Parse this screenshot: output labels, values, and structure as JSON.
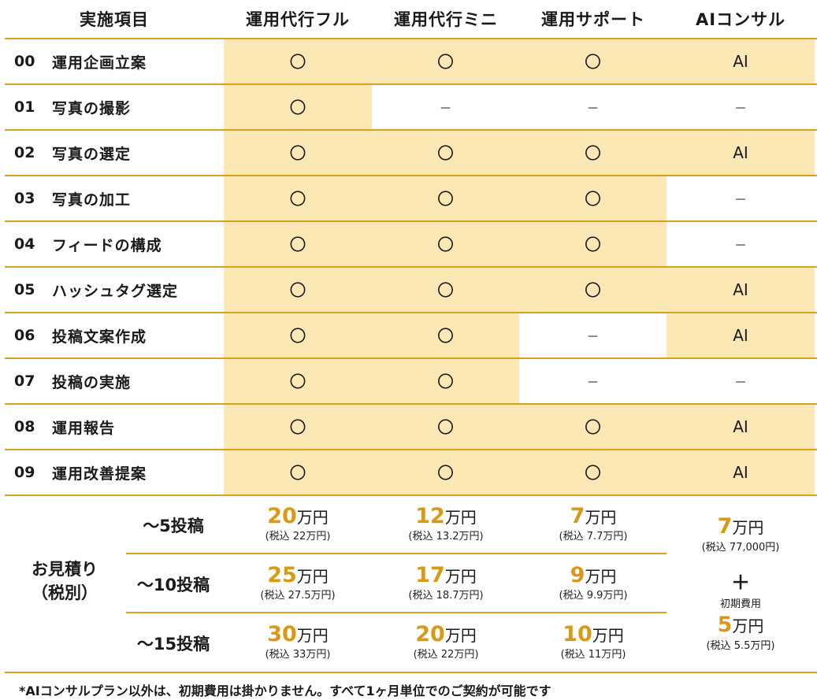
{
  "header": {
    "item_col": "実施項目",
    "plans": [
      "運用代行フル",
      "運用代行ミニ",
      "運用サポート",
      "AIコンサル"
    ]
  },
  "rows": [
    {
      "num": "00",
      "label": "運用企画立案",
      "marks": [
        "〇",
        "〇",
        "〇",
        "AI"
      ]
    },
    {
      "num": "01",
      "label": "写真の撮影",
      "marks": [
        "〇",
        "－",
        "－",
        "－"
      ]
    },
    {
      "num": "02",
      "label": "写真の選定",
      "marks": [
        "〇",
        "〇",
        "〇",
        "AI"
      ]
    },
    {
      "num": "03",
      "label": "写真の加工",
      "marks": [
        "〇",
        "〇",
        "〇",
        "－"
      ]
    },
    {
      "num": "04",
      "label": "フィードの構成",
      "marks": [
        "〇",
        "〇",
        "〇",
        "－"
      ]
    },
    {
      "num": "05",
      "label": "ハッシュタグ選定",
      "marks": [
        "〇",
        "〇",
        "〇",
        "AI"
      ]
    },
    {
      "num": "06",
      "label": "投稿文案作成",
      "marks": [
        "〇",
        "〇",
        "－",
        "AI"
      ]
    },
    {
      "num": "07",
      "label": "投稿の実施",
      "marks": [
        "〇",
        "〇",
        "－",
        "－"
      ]
    },
    {
      "num": "08",
      "label": "運用報告",
      "marks": [
        "〇",
        "〇",
        "〇",
        "AI"
      ]
    },
    {
      "num": "09",
      "label": "運用改善提案",
      "marks": [
        "〇",
        "〇",
        "〇",
        "AI"
      ]
    }
  ],
  "estimate": {
    "label_line1": "お見積り",
    "label_line2": "（税別）",
    "tiers": [
      {
        "label": "～5投稿",
        "prices": [
          {
            "amount": "20",
            "unit": "万円",
            "tax": "(税込 22万円)"
          },
          {
            "amount": "12",
            "unit": "万円",
            "tax": "(税込 13.2万円)"
          },
          {
            "amount": "7",
            "unit": "万円",
            "tax": "(税込 7.7万円)"
          }
        ]
      },
      {
        "label": "～10投稿",
        "prices": [
          {
            "amount": "25",
            "unit": "万円",
            "tax": "(税込 27.5万円)"
          },
          {
            "amount": "17",
            "unit": "万円",
            "tax": "(税込 18.7万円)"
          },
          {
            "amount": "9",
            "unit": "万円",
            "tax": "(税込 9.9万円)"
          }
        ]
      },
      {
        "label": "～15投稿",
        "prices": [
          {
            "amount": "30",
            "unit": "万円",
            "tax": "(税込 33万円)"
          },
          {
            "amount": "20",
            "unit": "万円",
            "tax": "(税込 22万円)"
          },
          {
            "amount": "10",
            "unit": "万円",
            "tax": "(税込 11万円)"
          }
        ]
      }
    ],
    "ai": {
      "monthly_amount": "7",
      "monthly_unit": "万円",
      "monthly_tax": "(税込 77,000円)",
      "plus": "＋",
      "initial_label": "初期費用",
      "initial_amount": "5",
      "initial_unit": "万円",
      "initial_tax": "(税込 5.5万円)"
    }
  },
  "footnote": "*AIコンサルプラン以外は、初期費用は掛かりません。すべて1ヶ月単位でのご契約が可能です",
  "colors": {
    "accent": "#d89a14",
    "fill": "#fce8b5",
    "rule": "#d8a21e"
  }
}
